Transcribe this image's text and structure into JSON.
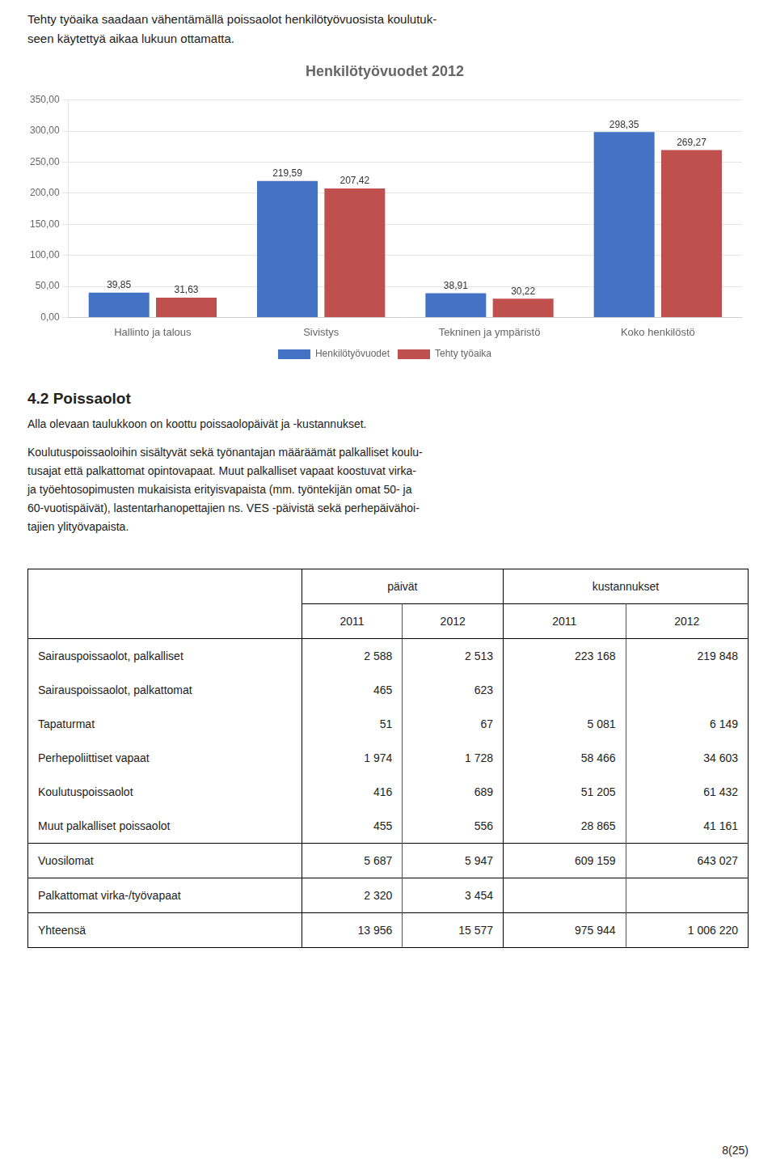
{
  "chart_data": {
    "type": "bar",
    "title": "Henkilötyövuodet 2012",
    "categories": [
      "Hallinto ja talous",
      "Sivistys",
      "Tekninen ja ympäristö",
      "Koko henkilöstö"
    ],
    "series": [
      {
        "name": "Henkilötyövuodet",
        "color": "#4472C4",
        "values": [
          39.85,
          219.59,
          38.91,
          298.35
        ],
        "value_labels": [
          "39,85",
          "219,59",
          "38,91",
          "298,35"
        ]
      },
      {
        "name": "Tehty työaika",
        "color": "#C0504D",
        "values": [
          31.63,
          207.42,
          30.22,
          269.27
        ],
        "value_labels": [
          "31,63",
          "207,42",
          "30,22",
          "269,27"
        ]
      }
    ],
    "ylim": [
      0,
      350
    ],
    "yticks": [
      {
        "value": 0,
        "label": "0,00"
      },
      {
        "value": 50,
        "label": "50,00"
      },
      {
        "value": 100,
        "label": "100,00"
      },
      {
        "value": 150,
        "label": "150,00"
      },
      {
        "value": 200,
        "label": "200,00"
      },
      {
        "value": 250,
        "label": "250,00"
      },
      {
        "value": 300,
        "label": "300,00"
      },
      {
        "value": 350,
        "label": "350,00"
      }
    ],
    "grid": true,
    "legend": "bottom",
    "data_labels": true
  },
  "intro_text": [
    "Tehty työaika saadaan vähentämällä poissaolot henkilötyövuosista koulutuk-",
    "seen käytettyä aikaa lukuun ottamatta."
  ],
  "section_title": "4.2 Poissaolot",
  "para1": "Alla olevaan taulukkoon on koottu poissaolopäivät ja -kustannukset.",
  "para2_lines": [
    "Koulutuspoissaoloihin sisältyvät sekä työnantajan määräämät palkalliset koulu-",
    "tusajat että palkattomat opintovapaat. Muut palkalliset vapaat koostuvat virka-",
    "ja työehtosopimusten mukaisista erityisvapaista (mm. työntekijän omat 50- ja",
    "60-vuotispäivät), lastentarhanopettajien ns. VES -päivistä sekä perhepäivähoi-",
    "tajien ylityövapaista."
  ],
  "table": {
    "header_groups": [
      "päivät",
      "kustannukset"
    ],
    "header_years": [
      "2011",
      "2012",
      "2011",
      "2012"
    ],
    "rows": [
      [
        "Sairauspoissaolot, palkalliset",
        "2 588",
        "2 513",
        "223 168",
        "219 848"
      ],
      [
        "Sairauspoissaolot, palkattomat",
        "465",
        "623",
        null,
        null
      ],
      [
        "Tapaturmat",
        "51",
        "67",
        "5 081",
        "6 149"
      ],
      [
        "Perhepoliittiset vapaat",
        "1 974",
        "1 728",
        "58 466",
        "34 603"
      ],
      [
        "Koulutuspoissaolot",
        "416",
        "689",
        "51 205",
        "61 432"
      ],
      [
        "Muut palkalliset poissaolot",
        "455",
        "556",
        "28 865",
        "41 161"
      ],
      [
        "Vuosilomat",
        "5 687",
        "5 947",
        "609 159",
        "643 027"
      ],
      [
        "Palkattomat virka-/työvapaat",
        "2 320",
        "3 454",
        null,
        null
      ],
      [
        "Yhteensä",
        "13 956",
        "15 577",
        "975 944",
        "1 006 220"
      ]
    ]
  },
  "page_number": "8(25)"
}
